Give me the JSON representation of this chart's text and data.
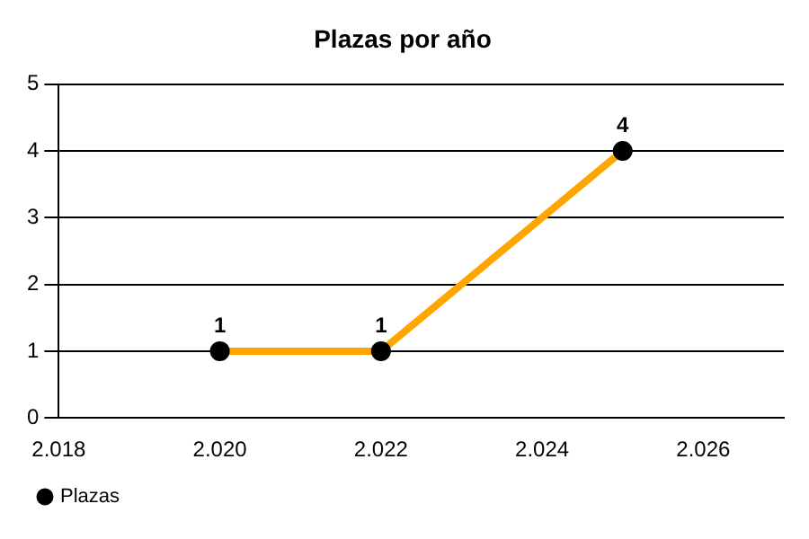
{
  "chart_data": {
    "type": "line",
    "title": "Plazas por año",
    "x": [
      2020,
      2022,
      2025
    ],
    "series": [
      {
        "name": "Plazas",
        "color": "#ffa500",
        "values": [
          1,
          1,
          4
        ]
      }
    ],
    "xlim": [
      2018,
      2027
    ],
    "xticks": [
      {
        "value": 2018,
        "label": "2.018"
      },
      {
        "value": 2020,
        "label": "2.020"
      },
      {
        "value": 2022,
        "label": "2.022"
      },
      {
        "value": 2024,
        "label": "2.024"
      },
      {
        "value": 2026,
        "label": "2.026"
      }
    ],
    "ylim": [
      0,
      5
    ],
    "yticks": [
      0,
      1,
      2,
      3,
      4,
      5
    ],
    "grid": "y",
    "legend": "bottom left",
    "marker": "circle",
    "line_style": "solid",
    "data_labels": true
  }
}
